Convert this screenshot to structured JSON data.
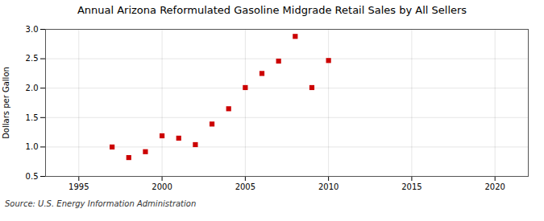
{
  "chart_data": {
    "type": "scatter",
    "title": "Annual Arizona Reformulated Gasoline Midgrade Retail Sales by All Sellers",
    "ylabel": "Dollars per Gallon",
    "annotations": [
      "Source: U.S. Energy Information Administration"
    ],
    "x": [
      1997,
      1998,
      1999,
      2000,
      2001,
      2002,
      2003,
      2004,
      2005,
      2006,
      2007,
      2008,
      2009,
      2010
    ],
    "values": [
      1.0,
      0.82,
      0.92,
      1.19,
      1.15,
      1.04,
      1.39,
      1.65,
      2.01,
      2.25,
      2.46,
      2.88,
      2.01,
      2.47
    ],
    "color": "#cc0000",
    "marker": "square",
    "xlim": [
      1993,
      2022
    ],
    "xticks": [
      1995,
      2000,
      2005,
      2010,
      2015,
      2020
    ],
    "ylim": [
      0.5,
      3.0
    ],
    "yticks": [
      0.5,
      {
        "value": 1.0,
        "label": "1.0"
      },
      1.5,
      {
        "value": 2.0,
        "label": "2.0"
      },
      2.5,
      {
        "value": 3.0,
        "label": "3.0"
      }
    ],
    "grid": true
  }
}
